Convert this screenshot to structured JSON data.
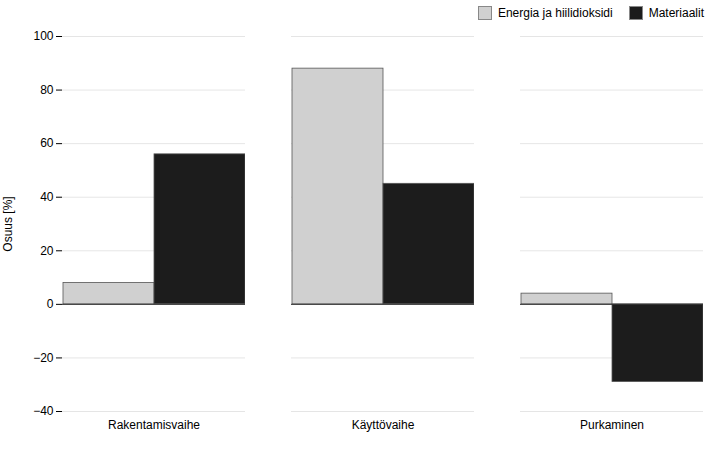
{
  "chart_data": {
    "type": "bar",
    "categories": [
      "Rakentamisvaihe",
      "Käyttövaihe",
      "Purkaminen"
    ],
    "series": [
      {
        "name": "Energia ja hiilidioksidi",
        "color": "#d0d0d0",
        "values": [
          8,
          88,
          4
        ]
      },
      {
        "name": "Materiaalit",
        "color": "#1c1c1c",
        "values": [
          56,
          45,
          -29
        ]
      }
    ],
    "ylabel": "Osuus [%]",
    "ylim": [
      -40,
      100
    ],
    "yticks": [
      -40,
      -20,
      0,
      20,
      40,
      60,
      80,
      100
    ],
    "grid": true,
    "legend": "upper right"
  }
}
